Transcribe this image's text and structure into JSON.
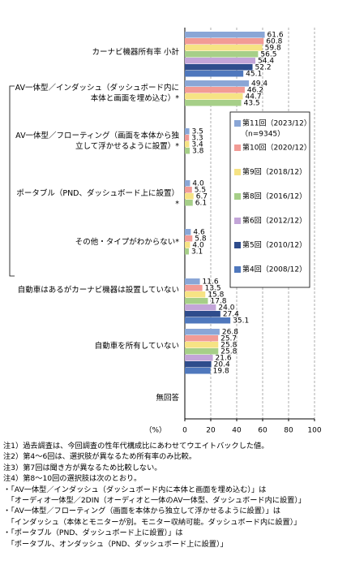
{
  "chart_data": {
    "type": "bar",
    "orientation": "horizontal",
    "categories": [
      "カーナビ機器所有率 小計",
      "AV一体型／インダッシュ（ダッシュボード内に本体と画面を埋め込む）*",
      "AV一体型／フローティング（画面を本体から独立して浮かせるように設置）*",
      "ポータブル（PND、ダッシュボード上に設置）*",
      "その他・タイプがわからない*",
      "自動車はあるがカーナビ機器は設置していない",
      "自動車を所有していない",
      "無回答"
    ],
    "series": [
      {
        "name": "第11回（2023/12）",
        "color": "#8aa6d6",
        "values": [
          61.6,
          49.4,
          3.5,
          4.0,
          4.6,
          11.6,
          26.8,
          null
        ],
        "value_labels": [
          "61.6",
          "49.4",
          "3.5",
          "4.0",
          "4.6",
          "11.6",
          "26.8",
          null
        ]
      },
      {
        "name": "第10回（2020/12）",
        "color": "#f29b95",
        "values": [
          60.8,
          46.2,
          3.3,
          5.5,
          5.8,
          13.5,
          25.7,
          null
        ],
        "value_labels": [
          "60.8",
          "46.2",
          "3.3",
          "5.5",
          "5.8",
          "13.5",
          "25.7",
          null
        ]
      },
      {
        "name": "第9回（2018/12）",
        "color": "#f6e384",
        "values": [
          59.8,
          44.7,
          3.4,
          6.7,
          4.0,
          15.8,
          25.8,
          null
        ],
        "value_labels": [
          "59.8",
          "44.7",
          "3.4",
          "6.7",
          "4.0",
          "15.8",
          "25.8",
          null
        ]
      },
      {
        "name": "第8回（2016/12）",
        "color": "#a6cf88",
        "values": [
          56.5,
          43.5,
          3.8,
          6.1,
          3.1,
          17.8,
          25.8,
          null
        ],
        "value_labels": [
          "56.5",
          "43.5",
          "3.8",
          "6.1",
          "3.1",
          "17.8",
          "25.8",
          null
        ]
      },
      {
        "name": "第6回（2012/12）",
        "color": "#c3a5d8",
        "values": [
          54.4,
          null,
          null,
          null,
          null,
          24.0,
          21.6,
          null
        ],
        "value_labels": [
          "54.4",
          null,
          null,
          null,
          null,
          "24.0",
          "21.6",
          null
        ]
      },
      {
        "name": "第5回（2010/12）",
        "color": "#2e4c8c",
        "values": [
          52.2,
          null,
          null,
          null,
          null,
          27.4,
          20.4,
          null
        ],
        "value_labels": [
          "52.2",
          null,
          null,
          null,
          null,
          "27.4",
          "20.4",
          null
        ]
      },
      {
        "name": "第4回（2008/12）",
        "color": "#4f78bd",
        "values": [
          45.1,
          null,
          null,
          null,
          null,
          35.1,
          19.8,
          null
        ],
        "value_labels": [
          "45.1",
          null,
          null,
          null,
          null,
          "35.1",
          "19.8",
          null
        ]
      }
    ],
    "legend_note": "（n=9345）",
    "xlabel": "（%）",
    "xlim": [
      0,
      100
    ],
    "xticks": [
      0,
      20,
      40,
      60,
      80,
      100
    ],
    "grid": true,
    "notes": [
      "注1）過去調査は、今回調査の性年代構成比にあわせてウエイトバックした値。",
      "注2）第4～6回は、選択肢が異なるため所有率のみ比較。",
      "注3）第7回は聞き方が異なるため比較しない。",
      "注4）第8～10回の選択肢は次のとおり。",
      "・「AV一体型／インダッシュ（ダッシュボード内に本体と画面を埋め込む）」は",
      "　「オーディオ一体型／2DIN（オーディオと一体のAV一体型、ダッシュボード内に設置）」",
      "・「AV一体型／フローティング（画面を本体から独立して浮かせるように設置）」は",
      "　「インダッシュ（本体とモニターが別。モニター収納可能。ダッシュボード内に設置）」",
      "・「ポータブル（PND、ダッシュボード上に設置）」は",
      "　「ポータブル、オンダッシュ（PND、ダッシュボード上に設置）」"
    ]
  }
}
